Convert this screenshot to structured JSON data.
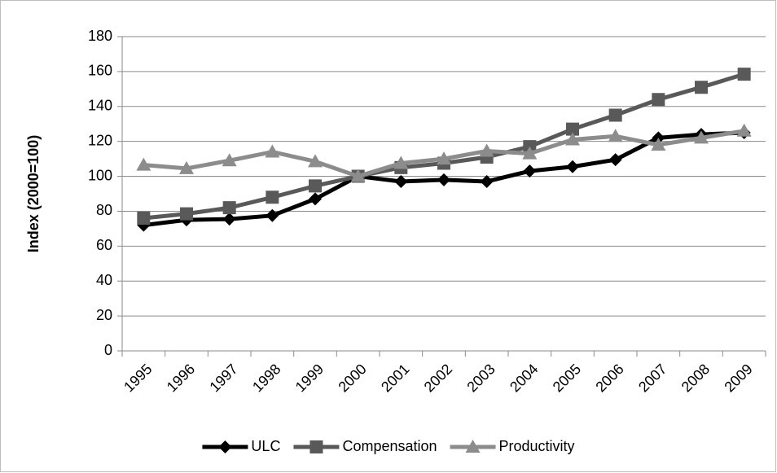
{
  "chart_data": {
    "type": "line",
    "y_label": "Index (2000=100)",
    "categories": [
      "1995",
      "1996",
      "1997",
      "1998",
      "1999",
      "2000",
      "2001",
      "2002",
      "2003",
      "2004",
      "2005",
      "2006",
      "2007",
      "2008",
      "2009"
    ],
    "series": [
      {
        "name": "ULC",
        "color": "#000000",
        "marker": "diamond",
        "values": [
          72,
          75,
          75.5,
          77.5,
          87,
          100,
          97,
          98,
          97,
          103,
          105.5,
          109.5,
          122,
          124,
          125
        ]
      },
      {
        "name": "Compensation",
        "color": "#595959",
        "marker": "square",
        "values": [
          76,
          78.5,
          82,
          88,
          94.5,
          100,
          105,
          107.5,
          111,
          117,
          127,
          135,
          144,
          151,
          158.5
        ]
      },
      {
        "name": "Productivity",
        "color": "#8c8c8c",
        "marker": "triangle",
        "values": [
          106.5,
          104.5,
          109,
          114,
          108.5,
          100,
          107.5,
          110,
          114.5,
          113,
          121,
          123,
          118,
          122,
          126
        ]
      }
    ],
    "ylim": [
      0,
      180
    ],
    "yticks": [
      0,
      20,
      40,
      60,
      80,
      100,
      120,
      140,
      160,
      180
    ],
    "grid": true,
    "legend": "bottom"
  }
}
